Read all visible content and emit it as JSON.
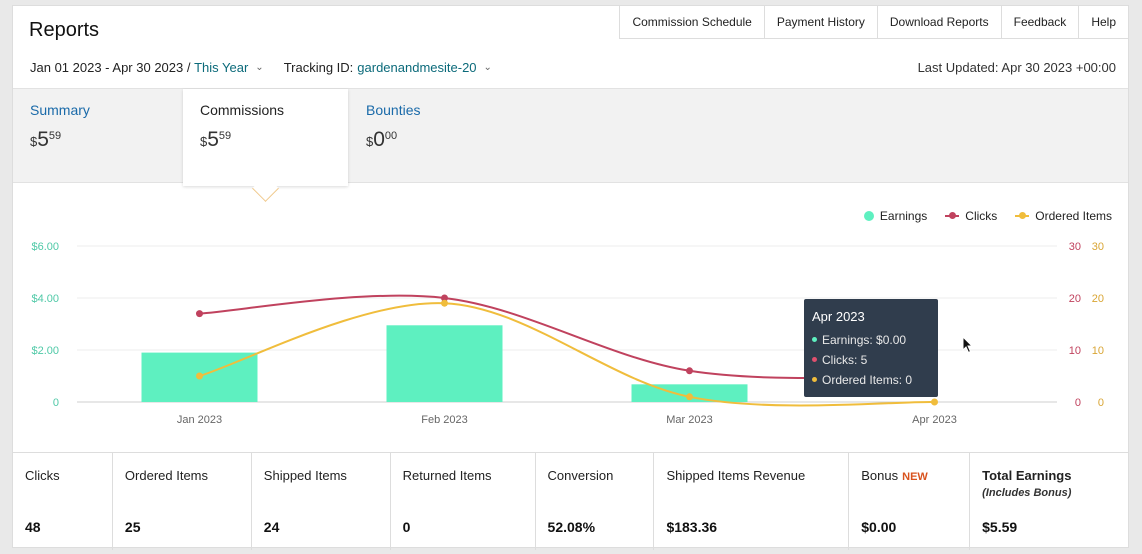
{
  "header": {
    "title": "Reports",
    "links": [
      "Commission Schedule",
      "Payment History",
      "Download Reports",
      "Feedback",
      "Help"
    ]
  },
  "filters": {
    "date_range": "Jan 01 2023 - Apr 30 2023 /",
    "period": "This Year",
    "tracking_label": "Tracking ID:",
    "tracking_id": "gardenandmesite-20",
    "last_updated": "Last Updated: Apr 30 2023 +00:00"
  },
  "tabs": [
    {
      "label": "Summary",
      "currency": "$",
      "whole": "5",
      "cents": "59"
    },
    {
      "label": "Commissions",
      "currency": "$",
      "whole": "5",
      "cents": "59"
    },
    {
      "label": "Bounties",
      "currency": "$",
      "whole": "0",
      "cents": "00"
    }
  ],
  "legend": [
    {
      "label": "Earnings",
      "color": "#5ef0c0"
    },
    {
      "label": "Clicks",
      "color": "#c0425e"
    },
    {
      "label": "Ordered Items",
      "color": "#f0bd3c"
    }
  ],
  "tooltip": {
    "title": "Apr 2023",
    "rows": [
      "Earnings: $0.00",
      "Clicks: 5",
      "Ordered Items: 0"
    ]
  },
  "chart_data": {
    "type": "bar",
    "categories": [
      "Jan 2023",
      "Feb 2023",
      "Mar 2023",
      "Apr 2023"
    ],
    "series": [
      {
        "name": "Earnings",
        "type": "bar",
        "axis": "left",
        "values": [
          1.9,
          2.95,
          0.68,
          0.0
        ],
        "color": "#5ef0c0"
      },
      {
        "name": "Clicks",
        "type": "line",
        "axis": "right",
        "values": [
          17,
          20,
          6,
          5
        ],
        "color": "#c0425e"
      },
      {
        "name": "Ordered Items",
        "type": "line",
        "axis": "right",
        "values": [
          5,
          19,
          1,
          0
        ],
        "color": "#f0bd3c"
      }
    ],
    "left_axis": {
      "ticks": [
        "0",
        "$2.00",
        "$4.00",
        "$6.00"
      ],
      "ylim": [
        0,
        6
      ]
    },
    "right_axis": {
      "ticks": [
        "0",
        "10",
        "20",
        "30"
      ],
      "ylim": [
        0,
        30
      ]
    },
    "grid": true,
    "legend_position": "top-right"
  },
  "stats": [
    {
      "label": "Clicks",
      "value": "48"
    },
    {
      "label": "Ordered Items",
      "value": "25"
    },
    {
      "label": "Shipped Items",
      "value": "24"
    },
    {
      "label": "Returned Items",
      "value": "0"
    },
    {
      "label": "Conversion",
      "value": "52.08%"
    },
    {
      "label": "Shipped Items Revenue",
      "value": "$183.36"
    },
    {
      "label": "Bonus",
      "badge": "NEW",
      "value": "$0.00"
    },
    {
      "label": "Total Earnings",
      "sub": "(Includes Bonus)",
      "value": "$5.59"
    }
  ]
}
